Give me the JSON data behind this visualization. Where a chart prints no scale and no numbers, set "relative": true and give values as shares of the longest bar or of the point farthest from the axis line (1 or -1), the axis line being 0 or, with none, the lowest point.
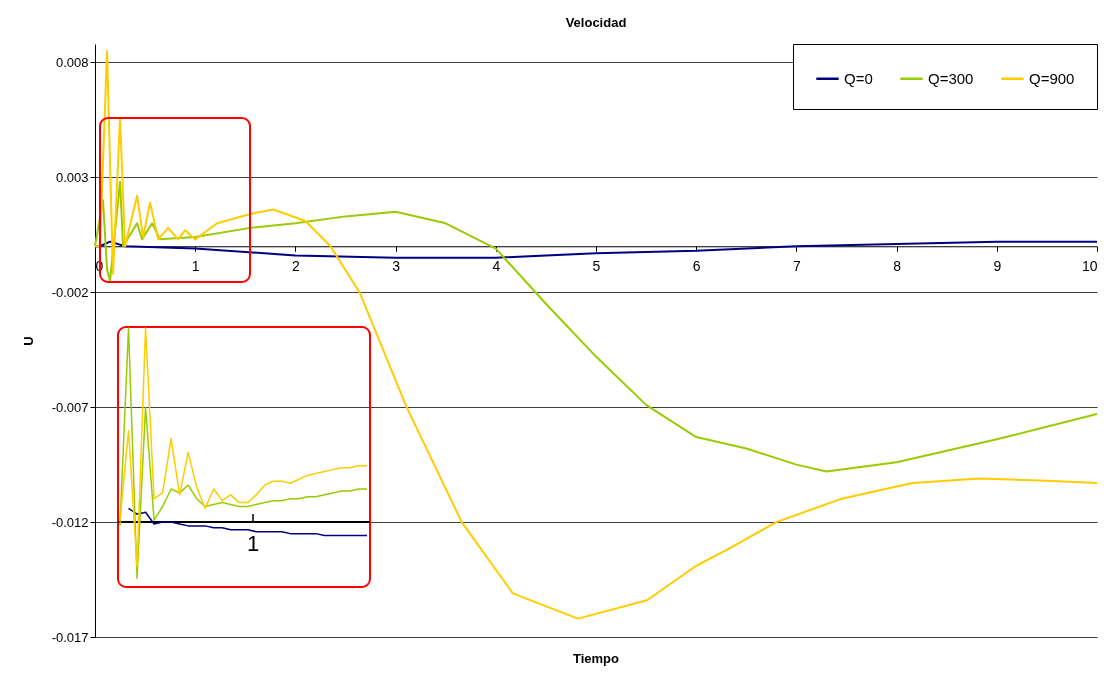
{
  "chart_data": [
    {
      "type": "line",
      "title": "Velocidad",
      "xlabel": "Tiempo",
      "ylabel": "U",
      "xlim": [
        0,
        10
      ],
      "xticks": [
        0,
        1,
        2,
        3,
        4,
        5,
        6,
        7,
        8,
        9,
        10
      ],
      "ylim": [
        -0.017,
        0.0088
      ],
      "yticks": [
        0.008,
        0.003,
        -0.002,
        -0.007,
        -0.012,
        -0.017
      ],
      "grid": "y",
      "legend": "top right",
      "series": [
        {
          "name": "Q=0",
          "color": "#000080",
          "x": [
            0,
            0.05,
            0.15,
            0.3,
            1,
            2,
            3,
            4,
            5,
            6,
            7,
            8,
            9,
            10
          ],
          "values": [
            0,
            0,
            0.0002,
            0,
            -0.0001,
            -0.0004,
            -0.0005,
            -0.0005,
            -0.0003,
            -0.0002,
            0,
            0.0001,
            0.0002,
            0.0002
          ]
        },
        {
          "name": "Q=300",
          "color": "#99cc00",
          "x": [
            0,
            0.08,
            0.12,
            0.15,
            0.25,
            0.28,
            0.42,
            0.47,
            0.57,
            0.65,
            1,
            1.55,
            2,
            2.5,
            3,
            3.5,
            4,
            4.5,
            5,
            5.5,
            6,
            6.5,
            7,
            7.3,
            8,
            9,
            10
          ],
          "values": [
            0,
            0.002,
            -0.001,
            -0.0015,
            0.0028,
            0,
            0.001,
            0.0003,
            0.001,
            0.0003,
            0.0004,
            0.0008,
            0.001,
            0.0013,
            0.0015,
            0.001,
            -0.0001,
            -0.0025,
            -0.0048,
            -0.0069,
            -0.0083,
            -0.0088,
            -0.0095,
            -0.0098,
            -0.0094,
            -0.0084,
            -0.0073
          ]
        },
        {
          "name": "Q=900",
          "color": "#ffcc00",
          "x": [
            0,
            0.05,
            0.12,
            0.18,
            0.25,
            0.3,
            0.42,
            0.48,
            0.55,
            0.63,
            0.73,
            0.83,
            0.9,
            1,
            1.22,
            1.55,
            1.78,
            2.1,
            2.35,
            2.64,
            3.11,
            3.66,
            4.17,
            4.82,
            5.51,
            6,
            6.31,
            6.8,
            7.44,
            8.16,
            8.83,
            9.5,
            10
          ],
          "values": [
            0,
            0,
            0.0085,
            -0.0012,
            0.0056,
            0,
            0.0022,
            0.0004,
            0.0019,
            0.0003,
            0.0008,
            0.0003,
            0.0007,
            0.0003,
            0.001,
            0.0014,
            0.0016,
            0.0011,
            0,
            -0.002,
            -0.007,
            -0.012,
            -0.0151,
            -0.0162,
            -0.0154,
            -0.0139,
            -0.0132,
            -0.012,
            -0.011,
            -0.0103,
            -0.0101,
            -0.0102,
            -0.0103
          ]
        }
      ]
    },
    {
      "type": "line",
      "relative": true,
      "annotations": [
        "1"
      ],
      "categories": [
        null,
        null,
        null,
        null,
        null,
        null,
        null,
        null,
        null,
        null,
        null,
        null,
        null,
        null,
        null,
        null,
        null,
        null,
        null,
        null,
        null,
        null,
        null,
        null,
        null,
        null,
        null,
        null,
        null,
        null
      ],
      "series": [
        {
          "color": "#000080",
          "values": [
            null,
            0.07,
            0.04,
            0.05,
            -0.01,
            0,
            0,
            -0.01,
            -0.02,
            -0.02,
            -0.02,
            -0.03,
            -0.03,
            -0.04,
            -0.04,
            -0.04,
            -0.05,
            -0.05,
            -0.05,
            -0.05,
            -0.06,
            -0.06,
            -0.06,
            -0.06,
            -0.07,
            -0.07,
            -0.07,
            -0.07,
            -0.07,
            -0.07
          ]
        },
        {
          "color": "#99cc00",
          "values": [
            -0.02,
            1,
            -0.29,
            0.59,
            0.01,
            0.08,
            0.17,
            0.15,
            0.19,
            0.12,
            0.08,
            0.09,
            0.1,
            0.09,
            0.08,
            0.08,
            0.09,
            0.1,
            0.11,
            0.11,
            0.12,
            0.12,
            0.13,
            0.13,
            0.14,
            0.15,
            0.16,
            0.16,
            0.17,
            0.17
          ]
        },
        {
          "color": "#ffcc00",
          "values": [
            0.01,
            0.47,
            -0.23,
            1,
            0.12,
            0.15,
            0.43,
            0.14,
            0.36,
            0.18,
            0.07,
            0.17,
            0.11,
            0.14,
            0.1,
            0.1,
            0.14,
            0.19,
            0.21,
            0.21,
            0.2,
            0.22,
            0.24,
            0.25,
            0.26,
            0.27,
            0.28,
            0.28,
            0.29,
            0.29
          ]
        }
      ]
    }
  ]
}
